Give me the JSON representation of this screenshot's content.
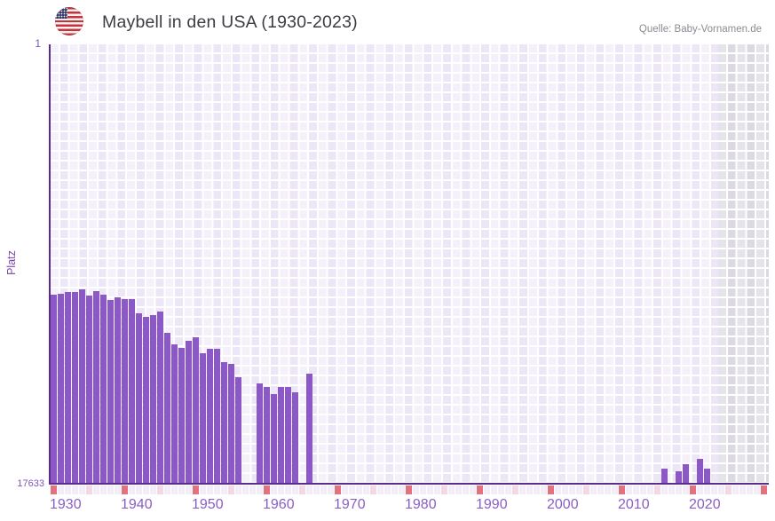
{
  "header": {
    "title": "Maybell in den USA (1930-2023)",
    "source": "Quelle: Baby-Vornamen.de",
    "flag_icon": "us-flag-icon"
  },
  "chart_data": {
    "type": "bar",
    "title": "Maybell in den USA (1930-2023)",
    "xlabel": "",
    "ylabel": "Platz",
    "legend": null,
    "grid": true,
    "y_axis": {
      "top_tick_label": "1",
      "bottom_tick_label": "17633",
      "min": 1,
      "max": 17633,
      "scale": "log",
      "inverted": true
    },
    "x_axis": {
      "domain_start": 1930,
      "domain_end": 2031,
      "data_start": 1930,
      "data_end": 2023,
      "no_data_region_start": 2024,
      "decade_tick_labels": [
        "1930",
        "1940",
        "1950",
        "1960",
        "1970",
        "1980",
        "1990",
        "2000",
        "2010",
        "2020"
      ]
    },
    "values": [
      {
        "year": 1930,
        "rank": 260
      },
      {
        "year": 1931,
        "rank": 258
      },
      {
        "year": 1932,
        "rank": 245
      },
      {
        "year": 1933,
        "rank": 247
      },
      {
        "year": 1934,
        "rank": 233
      },
      {
        "year": 1935,
        "rank": 265
      },
      {
        "year": 1936,
        "rank": 240
      },
      {
        "year": 1937,
        "rank": 263
      },
      {
        "year": 1938,
        "rank": 296
      },
      {
        "year": 1939,
        "rank": 276
      },
      {
        "year": 1940,
        "rank": 290
      },
      {
        "year": 1941,
        "rank": 288
      },
      {
        "year": 1942,
        "rank": 400
      },
      {
        "year": 1943,
        "rank": 428
      },
      {
        "year": 1944,
        "rank": 414
      },
      {
        "year": 1945,
        "rank": 380
      },
      {
        "year": 1946,
        "rank": 614
      },
      {
        "year": 1947,
        "rank": 799
      },
      {
        "year": 1948,
        "rank": 855
      },
      {
        "year": 1949,
        "rank": 733
      },
      {
        "year": 1950,
        "rank": 677
      },
      {
        "year": 1951,
        "rank": 973
      },
      {
        "year": 1952,
        "rank": 872
      },
      {
        "year": 1953,
        "rank": 872
      },
      {
        "year": 1954,
        "rank": 1187
      },
      {
        "year": 1955,
        "rank": 1227
      },
      {
        "year": 1956,
        "rank": 1650
      },
      {
        "year": 1959,
        "rank": 1885
      },
      {
        "year": 1960,
        "rank": 2048
      },
      {
        "year": 1961,
        "rank": 2414
      },
      {
        "year": 1962,
        "rank": 2048
      },
      {
        "year": 1963,
        "rank": 2048
      },
      {
        "year": 1964,
        "rank": 2291
      },
      {
        "year": 1966,
        "rank": 1509
      },
      {
        "year": 2016,
        "rank": 12531
      },
      {
        "year": 2018,
        "rank": 13374
      },
      {
        "year": 2019,
        "rank": 11432
      },
      {
        "year": 2021,
        "rank": 10083
      },
      {
        "year": 2022,
        "rank": 12686
      }
    ],
    "years_without_bars_in_data_range": [
      "1957",
      "1958",
      "1965",
      "1967-2015",
      "2017",
      "2020",
      "2023"
    ]
  },
  "colors": {
    "bar": "#8b58c6",
    "axis_line": "#5b2c8f",
    "x_tick_label": "#8a5ec6",
    "y_tick_label": "#7d55b6",
    "grid_cell_light": "#f5f1fb",
    "grid_cell_dark": "#ece6f6",
    "nodata_cell_light": "#e6e4eb",
    "nodata_cell_dark": "#dcd9e2",
    "tick_decade": "#e4717e",
    "tick_halfdecade": "#f4d8e3",
    "tick_year": "#f2edf7",
    "title_text": "#3c3c45",
    "source_text": "#8b8b94"
  }
}
